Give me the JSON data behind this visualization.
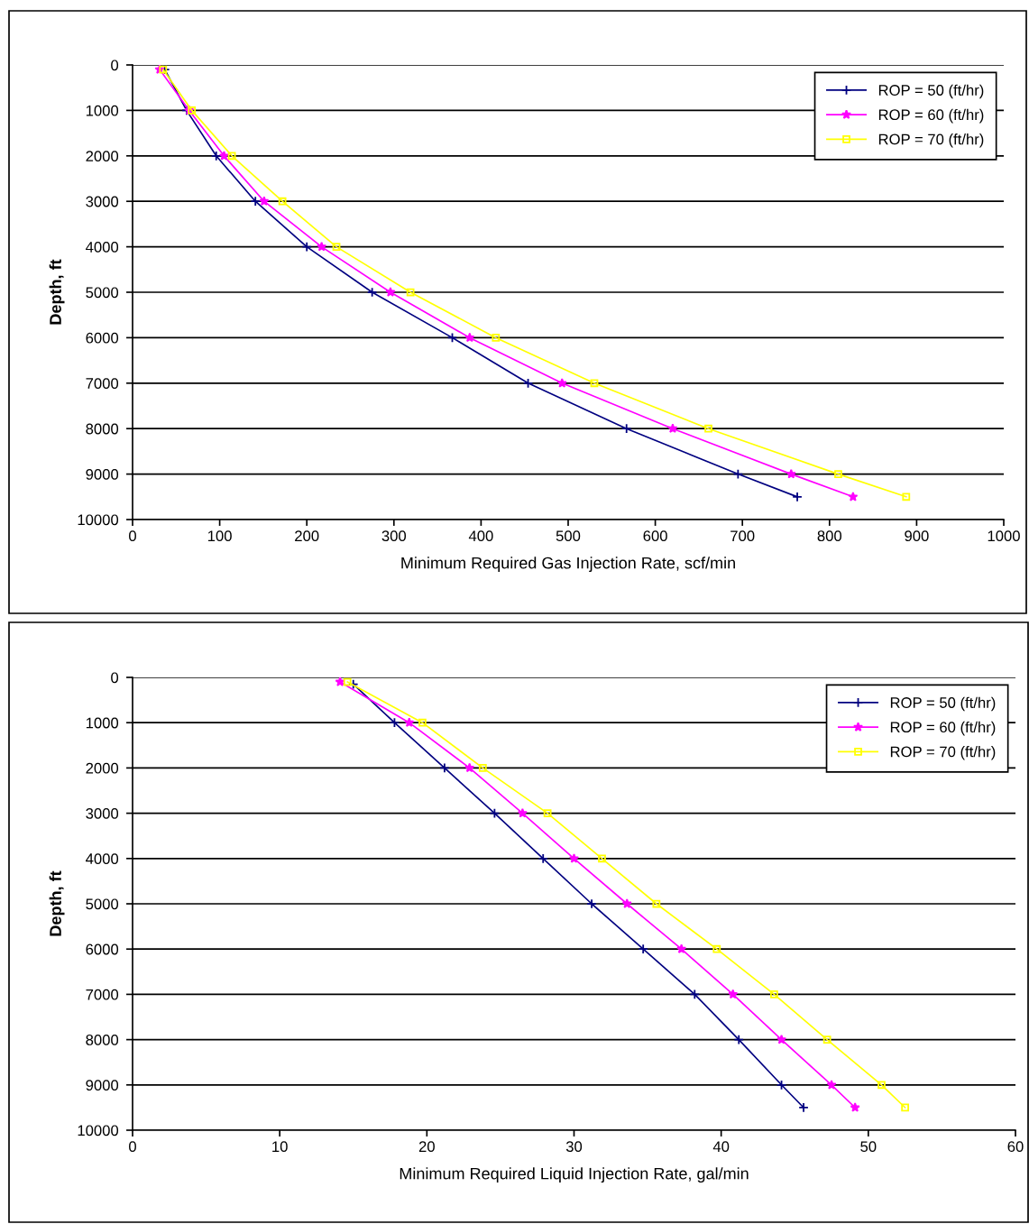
{
  "chart_data": [
    {
      "type": "line",
      "xlabel": "Minimum Required Gas Injection Rate, scf/min",
      "ylabel": "Depth, ft",
      "xlim": [
        0,
        1000
      ],
      "xticks": [
        0,
        100,
        200,
        300,
        400,
        500,
        600,
        700,
        800,
        900,
        1000
      ],
      "ylim": [
        10000,
        0
      ],
      "yticks": [
        0,
        1000,
        2000,
        3000,
        4000,
        5000,
        6000,
        7000,
        8000,
        9000,
        10000
      ],
      "grid": "y",
      "legend": "top right",
      "series": [
        {
          "name": "ROP = 50 (ft/hr)",
          "color": "#000080",
          "marker": "cross",
          "x": [
            37,
            62,
            96,
            141,
            200,
            275,
            367,
            454,
            567,
            695,
            763
          ],
          "values": [
            100,
            1000,
            2000,
            3000,
            4000,
            5000,
            6000,
            7000,
            8000,
            9000,
            9500
          ]
        },
        {
          "name": "ROP = 60 (ft/hr)",
          "color": "#ff00ff",
          "marker": "star",
          "x": [
            31,
            65,
            105,
            151,
            217,
            296,
            387,
            493,
            620,
            756,
            827
          ],
          "values": [
            100,
            1000,
            2000,
            3000,
            4000,
            5000,
            6000,
            7000,
            8000,
            9000,
            9500
          ]
        },
        {
          "name": "ROP = 70 (ft/hr)",
          "color": "#ffff00",
          "marker": "square",
          "x": [
            35,
            68,
            114,
            172,
            234,
            319,
            417,
            530,
            661,
            810,
            888
          ],
          "values": [
            100,
            1000,
            2000,
            3000,
            4000,
            5000,
            6000,
            7000,
            8000,
            9000,
            9500
          ]
        }
      ]
    },
    {
      "type": "line",
      "xlabel": "Minimum Required Liquid Injection Rate, gal/min",
      "ylabel": "Depth, ft",
      "xlim": [
        0,
        60
      ],
      "xticks": [
        0,
        10,
        20,
        30,
        40,
        50,
        60
      ],
      "ylim": [
        10000,
        0
      ],
      "yticks": [
        0,
        1000,
        2000,
        3000,
        4000,
        5000,
        6000,
        7000,
        8000,
        9000,
        10000
      ],
      "grid": "y",
      "legend": "top right",
      "series": [
        {
          "name": "ROP = 50 (ft/hr)",
          "color": "#000080",
          "marker": "cross",
          "x": [
            15.0,
            17.8,
            21.2,
            24.6,
            27.9,
            31.2,
            34.7,
            38.2,
            41.2,
            44.1,
            45.6
          ],
          "values": [
            150,
            1000,
            2000,
            3000,
            4000,
            5000,
            6000,
            7000,
            8000,
            9000,
            9500
          ]
        },
        {
          "name": "ROP = 60 (ft/hr)",
          "color": "#ff00ff",
          "marker": "star",
          "x": [
            14.1,
            18.8,
            22.9,
            26.5,
            30.0,
            33.6,
            37.3,
            40.8,
            44.1,
            47.5,
            49.1
          ],
          "values": [
            100,
            1000,
            2000,
            3000,
            4000,
            5000,
            6000,
            7000,
            8000,
            9000,
            9500
          ]
        },
        {
          "name": "ROP = 70 (ft/hr)",
          "color": "#ffff00",
          "marker": "square",
          "x": [
            14.6,
            19.7,
            23.8,
            28.2,
            31.9,
            35.6,
            39.7,
            43.6,
            47.2,
            50.9,
            52.5
          ],
          "values": [
            100,
            1000,
            2000,
            3000,
            4000,
            5000,
            6000,
            7000,
            8000,
            9000,
            9500
          ]
        }
      ]
    }
  ]
}
